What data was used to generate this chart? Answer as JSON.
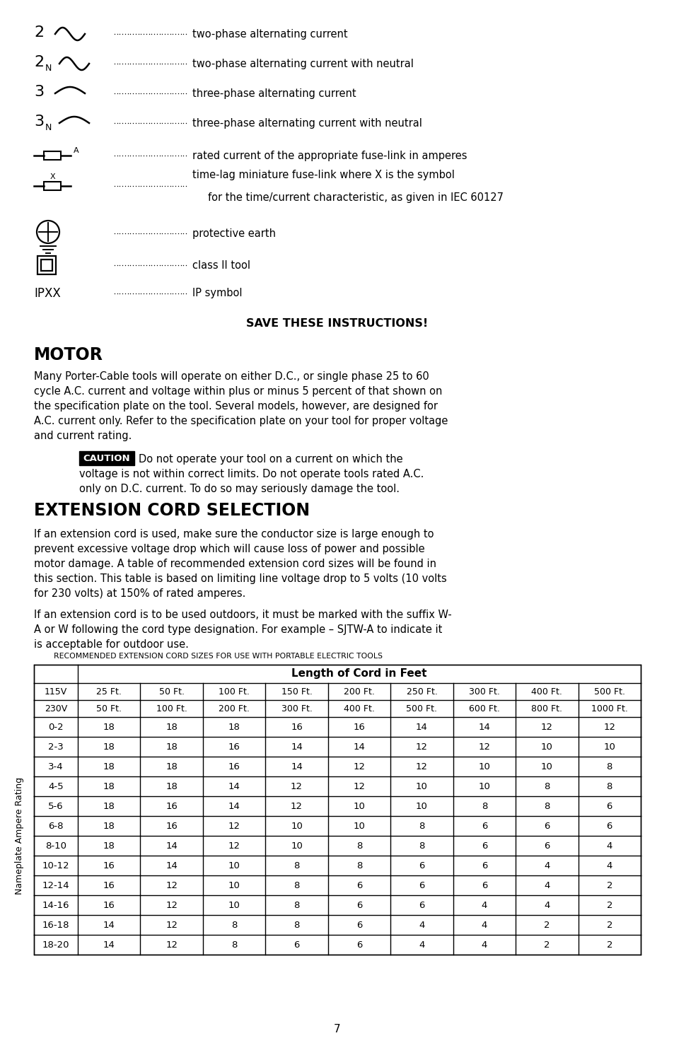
{
  "bg_color": "#ffffff",
  "page_number": "7",
  "save_text": "SAVE THESE INSTRUCTIONS!",
  "motor_title": "MOTOR",
  "caution_label": "CAUTION",
  "ext_title": "EXTENSION CORD SELECTION",
  "table_title": "RECOMMENDED EXTENSION CORD SIZES FOR USE WITH PORTABLE ELECTRIC TOOLS",
  "table_header_span": "Length of Cord in Feet",
  "table_row1": [
    "115V",
    "25 Ft.",
    "50 Ft.",
    "100 Ft.",
    "150 Ft.",
    "200 Ft.",
    "250 Ft.",
    "300 Ft.",
    "400 Ft.",
    "500 Ft."
  ],
  "table_row2": [
    "230V",
    "50 Ft.",
    "100 Ft.",
    "200 Ft.",
    "300 Ft.",
    "400 Ft.",
    "500 Ft.",
    "600 Ft.",
    "800 Ft.",
    "1000 Ft."
  ],
  "table_ampere_label": "Nameplate Ampere Rating",
  "table_data": [
    [
      "0-2",
      18,
      18,
      18,
      16,
      16,
      14,
      14,
      12,
      12
    ],
    [
      "2-3",
      18,
      18,
      16,
      14,
      14,
      12,
      12,
      10,
      10
    ],
    [
      "3-4",
      18,
      18,
      16,
      14,
      12,
      12,
      10,
      10,
      8
    ],
    [
      "4-5",
      18,
      18,
      14,
      12,
      12,
      10,
      10,
      8,
      8
    ],
    [
      "5-6",
      18,
      16,
      14,
      12,
      10,
      10,
      8,
      8,
      6
    ],
    [
      "6-8",
      18,
      16,
      12,
      10,
      10,
      8,
      6,
      6,
      6
    ],
    [
      "8-10",
      18,
      14,
      12,
      10,
      8,
      8,
      6,
      6,
      4
    ],
    [
      "10-12",
      16,
      14,
      10,
      8,
      8,
      6,
      6,
      4,
      4
    ],
    [
      "12-14",
      16,
      12,
      10,
      8,
      6,
      6,
      6,
      4,
      2
    ],
    [
      "14-16",
      16,
      12,
      10,
      8,
      6,
      6,
      4,
      4,
      2
    ],
    [
      "16-18",
      14,
      12,
      8,
      8,
      6,
      4,
      4,
      2,
      2
    ],
    [
      "18-20",
      14,
      12,
      8,
      6,
      6,
      4,
      4,
      2,
      2
    ]
  ]
}
